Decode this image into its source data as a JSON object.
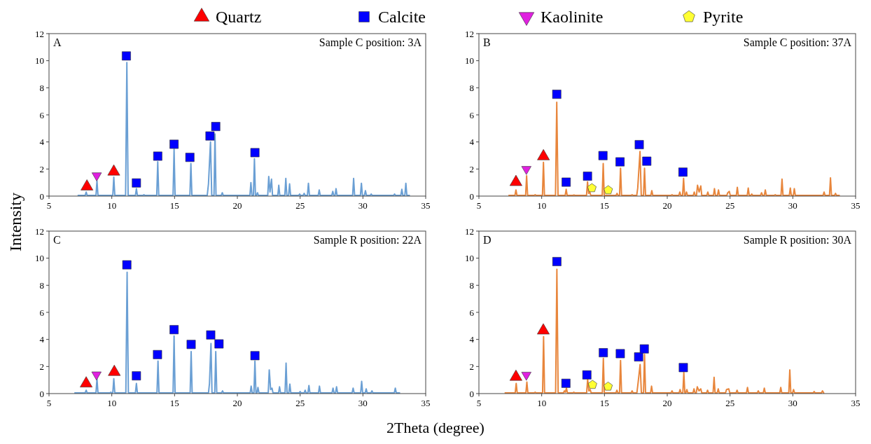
{
  "chart_data": [
    {
      "type": "line",
      "annotations": [
        "A",
        "Sample C position: 3A"
      ],
      "ylabel": "Intensity",
      "legend": "top",
      "xlim": [
        5,
        35
      ],
      "xticks": [
        5,
        10,
        15,
        20,
        25,
        30,
        35
      ],
      "ylim": [
        0,
        12
      ],
      "yticks": [
        0,
        2,
        4,
        6,
        8,
        10,
        12
      ],
      "series": [
        {
          "color": "#6a9fd4",
          "x": [
            7.32,
            7.88,
            7.96,
            8.04,
            8.74,
            8.82,
            8.9,
            10.08,
            10.16,
            10.24,
            11.1,
            11.2,
            11.3,
            11.88,
            11.96,
            12.04,
            12.48,
            12.56,
            12.64,
            13.58,
            13.66,
            13.74,
            14.88,
            14.96,
            15.04,
            16.22,
            16.3,
            16.38,
            17.6,
            17.7,
            17.86,
            17.96,
            18.14,
            18.22,
            18.3,
            18.72,
            18.8,
            18.88,
            21.0,
            21.08,
            21.16,
            21.28,
            21.36,
            21.44,
            21.52,
            21.6,
            21.68,
            22.42,
            22.5,
            22.6,
            22.72,
            22.8,
            23.22,
            23.3,
            23.38,
            23.78,
            23.86,
            23.94,
            24.08,
            24.16,
            24.24,
            24.88,
            24.96,
            25.04,
            25.24,
            25.32,
            25.4,
            25.58,
            25.66,
            25.74,
            26.44,
            26.52,
            26.6,
            27.52,
            27.6,
            27.68,
            27.78,
            27.86,
            27.94,
            29.18,
            29.26,
            29.34,
            29.8,
            29.88,
            29.96,
            30.12,
            30.2,
            30.28,
            30.58,
            30.66,
            30.74,
            32.44,
            32.52,
            32.6,
            33.02,
            33.1,
            33.18,
            33.34,
            33.42,
            33.5,
            33.7
          ],
          "values": [
            0.05,
            0.05,
            0.3,
            0.05,
            0.05,
            1.12,
            0.05,
            0.05,
            1.4,
            0.05,
            0.05,
            9.87,
            0.05,
            0.05,
            0.55,
            0.05,
            0.05,
            0.1,
            0.05,
            0.05,
            2.53,
            0.05,
            0.05,
            3.47,
            0.05,
            0.05,
            2.4,
            0.05,
            0.05,
            0.9,
            4.0,
            0.05,
            0.05,
            4.59,
            0.05,
            0.05,
            0.25,
            0.05,
            0.05,
            1.0,
            0.05,
            0.05,
            2.75,
            0.05,
            0.05,
            0.25,
            0.05,
            0.05,
            1.45,
            0.3,
            1.25,
            0.05,
            0.05,
            0.8,
            0.05,
            0.05,
            1.3,
            0.05,
            0.05,
            0.9,
            0.05,
            0.05,
            0.15,
            0.05,
            0.05,
            0.2,
            0.05,
            0.05,
            0.95,
            0.05,
            0.05,
            0.45,
            0.05,
            0.05,
            0.35,
            0.05,
            0.05,
            0.55,
            0.05,
            0.05,
            1.3,
            0.05,
            0.05,
            0.95,
            0.05,
            0.05,
            0.4,
            0.05,
            0.05,
            0.15,
            0.05,
            0.05,
            0.15,
            0.05,
            0.05,
            0.5,
            0.05,
            0.05,
            0.95,
            0.05,
            0.05
          ]
        },
        {
          "type": "scatter",
          "name": "Quartz",
          "color": "#ff0000",
          "marker": "triangle",
          "x": [
            8.02,
            10.16
          ],
          "values": [
            0.7,
            1.8
          ]
        },
        {
          "type": "scatter",
          "name": "Calcite",
          "color": "#0000ff",
          "marker": "square",
          "x": [
            11.16,
            11.96,
            13.66,
            14.96,
            16.22,
            17.82,
            18.28,
            21.4
          ],
          "values": [
            10.35,
            0.97,
            2.95,
            3.83,
            2.86,
            4.44,
            5.14,
            3.21
          ]
        },
        {
          "type": "scatter",
          "name": "Kaolinite",
          "color": "#e020e0",
          "marker": "triangle-down",
          "x": [
            8.8
          ],
          "values": [
            1.52
          ]
        }
      ]
    },
    {
      "type": "line",
      "annotations": [
        "B",
        "Sample C position: 37A"
      ],
      "xlim": [
        5,
        35
      ],
      "xticks": [
        5,
        10,
        15,
        20,
        25,
        30,
        35
      ],
      "ylim": [
        0,
        12
      ],
      "yticks": [
        0,
        2,
        4,
        6,
        8,
        10,
        12
      ],
      "series": [
        {
          "color": "#e8863c",
          "x": [
            7.39,
            7.87,
            7.95,
            8.03,
            8.72,
            8.8,
            8.88,
            9.4,
            9.48,
            9.56,
            10.06,
            10.14,
            10.22,
            11.1,
            11.2,
            11.3,
            11.87,
            11.95,
            12.03,
            12.49,
            12.57,
            12.65,
            13.57,
            13.65,
            13.74,
            13.83,
            13.91,
            14.82,
            14.9,
            14.98,
            15.92,
            16.0,
            16.08,
            16.2,
            16.28,
            16.36,
            17.12,
            17.2,
            17.28,
            17.57,
            17.65,
            17.83,
            17.93,
            18.11,
            18.19,
            18.27,
            18.69,
            18.77,
            18.85,
            20.3,
            20.38,
            20.46,
            20.92,
            21.0,
            21.08,
            21.22,
            21.3,
            21.38,
            21.45,
            21.53,
            21.61,
            22.07,
            22.15,
            22.23,
            22.33,
            22.41,
            22.54,
            22.67,
            22.75,
            23.15,
            23.23,
            23.31,
            23.68,
            23.76,
            23.84,
            24.0,
            24.08,
            24.16,
            24.74,
            24.82,
            24.94,
            25.02,
            25.5,
            25.58,
            25.66,
            26.37,
            26.45,
            26.53,
            26.65,
            26.73,
            26.81,
            27.43,
            27.51,
            27.6,
            27.73,
            27.81,
            27.89,
            28.52,
            28.6,
            28.68,
            29.06,
            29.14,
            29.22,
            29.72,
            29.8,
            29.88,
            30.04,
            30.12,
            30.2,
            32.41,
            32.49,
            32.57,
            32.92,
            33.0,
            33.08,
            33.32,
            33.4,
            33.48,
            33.7
          ],
          "values": [
            0.05,
            0.05,
            0.45,
            0.05,
            0.05,
            1.5,
            0.05,
            0.05,
            0.1,
            0.05,
            0.05,
            2.5,
            0.05,
            0.05,
            6.93,
            0.05,
            0.05,
            0.5,
            0.05,
            0.05,
            0.08,
            0.05,
            0.05,
            1.05,
            0.2,
            0.3,
            0.05,
            0.05,
            2.4,
            0.05,
            0.05,
            0.2,
            0.05,
            0.05,
            2.05,
            0.05,
            0.05,
            0.1,
            0.05,
            0.05,
            0.6,
            3.3,
            0.05,
            0.05,
            2.05,
            0.05,
            0.05,
            0.4,
            0.05,
            0.05,
            0.1,
            0.05,
            0.05,
            0.3,
            0.05,
            0.05,
            1.3,
            0.05,
            0.05,
            0.3,
            0.05,
            0.05,
            0.3,
            0.05,
            0.05,
            0.8,
            0.3,
            0.75,
            0.05,
            0.05,
            0.3,
            0.05,
            0.05,
            0.55,
            0.05,
            0.05,
            0.45,
            0.05,
            0.05,
            0.25,
            0.35,
            0.05,
            0.05,
            0.65,
            0.05,
            0.05,
            0.6,
            0.05,
            0.05,
            0.15,
            0.05,
            0.05,
            0.25,
            0.05,
            0.05,
            0.45,
            0.05,
            0.05,
            0.1,
            0.05,
            0.05,
            1.25,
            0.05,
            0.05,
            0.6,
            0.05,
            0.05,
            0.55,
            0.05,
            0.05,
            0.3,
            0.05,
            0.05,
            1.35,
            0.05,
            0.05,
            0.2,
            0.05,
            0.05
          ]
        },
        {
          "type": "scatter",
          "color": "#ff0000",
          "marker": "triangle",
          "x": [
            7.95,
            10.14
          ],
          "values": [
            1.03,
            2.93
          ]
        },
        {
          "type": "scatter",
          "color": "#0000ff",
          "marker": "square",
          "x": [
            11.2,
            11.95,
            13.65,
            14.88,
            16.24,
            17.77,
            18.37,
            21.25
          ],
          "values": [
            7.52,
            1.03,
            1.47,
            2.99,
            2.53,
            3.8,
            2.58,
            1.77
          ]
        },
        {
          "type": "scatter",
          "color": "#e020e0",
          "marker": "triangle-down",
          "x": [
            8.78
          ],
          "values": [
            1.99
          ]
        },
        {
          "type": "scatter",
          "name": "Pyrite",
          "color": "#ffff33",
          "x": [
            14.0,
            15.3
          ],
          "values": [
            0.59,
            0.44
          ]
        }
      ]
    },
    {
      "type": "line",
      "annotations": [
        "C",
        "Sample R position: 22A"
      ],
      "xlabel": "2Theta (degree)",
      "xlim": [
        5,
        35
      ],
      "xticks": [
        5,
        10,
        15,
        20,
        25,
        30,
        35
      ],
      "ylim": [
        0,
        12
      ],
      "yticks": [
        0,
        2,
        4,
        6,
        8,
        10,
        12
      ],
      "series": [
        {
          "color": "#6a9fd4",
          "x": [
            7.06,
            7.88,
            7.96,
            8.04,
            8.74,
            8.82,
            8.9,
            9.84,
            9.92,
            10.0,
            10.08,
            10.16,
            10.24,
            11.12,
            11.22,
            11.32,
            11.88,
            11.96,
            12.04,
            13.6,
            13.68,
            13.76,
            14.88,
            14.96,
            15.04,
            16.24,
            16.32,
            16.4,
            17.7,
            17.78,
            17.9,
            17.98,
            18.2,
            18.28,
            18.36,
            18.74,
            18.82,
            18.9,
            21.02,
            21.1,
            21.18,
            21.32,
            21.4,
            21.48,
            21.56,
            21.64,
            21.72,
            22.46,
            22.54,
            22.65,
            22.76,
            22.84,
            23.28,
            23.36,
            23.44,
            23.8,
            23.88,
            23.96,
            24.1,
            24.18,
            24.26,
            24.92,
            25.0,
            25.08,
            25.32,
            25.4,
            25.48,
            25.62,
            25.7,
            25.78,
            26.46,
            26.54,
            26.62,
            27.54,
            27.62,
            27.7,
            27.82,
            27.9,
            27.98,
            29.14,
            29.22,
            29.3,
            29.82,
            29.9,
            29.98,
            30.18,
            30.26,
            30.34,
            30.64,
            30.72,
            30.8,
            32.5,
            32.58,
            32.66,
            32.92
          ],
          "values": [
            0.05,
            0.05,
            0.25,
            0.05,
            0.05,
            1.1,
            0.05,
            0.05,
            0.1,
            0.05,
            0.05,
            1.1,
            0.05,
            0.05,
            8.96,
            0.05,
            0.05,
            0.75,
            0.05,
            0.05,
            2.4,
            0.05,
            0.05,
            4.25,
            0.05,
            0.05,
            3.1,
            0.05,
            0.05,
            0.75,
            3.7,
            0.05,
            0.05,
            3.1,
            0.05,
            0.05,
            0.2,
            0.05,
            0.05,
            0.55,
            0.05,
            0.05,
            2.4,
            0.05,
            0.05,
            0.45,
            0.05,
            0.05,
            1.75,
            0.3,
            0.4,
            0.05,
            0.05,
            0.5,
            0.05,
            0.05,
            2.25,
            0.05,
            0.05,
            0.7,
            0.05,
            0.05,
            0.15,
            0.05,
            0.05,
            0.25,
            0.05,
            0.05,
            0.6,
            0.05,
            0.05,
            0.55,
            0.05,
            0.05,
            0.4,
            0.05,
            0.05,
            0.5,
            0.05,
            0.05,
            0.4,
            0.05,
            0.05,
            0.9,
            0.05,
            0.05,
            0.35,
            0.05,
            0.05,
            0.2,
            0.05,
            0.05,
            0.4,
            0.05,
            0.05
          ]
        },
        {
          "type": "scatter",
          "color": "#ff0000",
          "marker": "triangle",
          "x": [
            7.96,
            10.2
          ],
          "values": [
            0.74,
            1.59
          ]
        },
        {
          "type": "scatter",
          "color": "#0000ff",
          "marker": "square",
          "x": [
            11.2,
            11.96,
            13.64,
            14.96,
            16.32,
            17.88,
            18.54,
            21.4
          ],
          "values": [
            9.51,
            1.31,
            2.88,
            4.72,
            3.63,
            4.33,
            3.67,
            2.8
          ]
        },
        {
          "type": "scatter",
          "color": "#e020e0",
          "marker": "triangle-down",
          "x": [
            8.78
          ],
          "values": [
            1.4
          ]
        }
      ]
    },
    {
      "type": "line",
      "annotations": [
        "D",
        "Sample R position: 30A"
      ],
      "xlim": [
        5,
        35
      ],
      "xticks": [
        5,
        10,
        15,
        20,
        25,
        30,
        35
      ],
      "ylim": [
        0,
        12
      ],
      "yticks": [
        0,
        2,
        4,
        6,
        8,
        10,
        12
      ],
      "series": [
        {
          "color": "#e8863c",
          "x": [
            7.09,
            7.89,
            7.97,
            8.05,
            8.74,
            8.82,
            8.9,
            9.4,
            9.48,
            9.56,
            10.07,
            10.15,
            10.23,
            11.11,
            11.21,
            11.31,
            11.73,
            11.81,
            11.89,
            11.97,
            12.05,
            12.48,
            12.56,
            12.64,
            13.58,
            13.66,
            13.76,
            13.86,
            13.94,
            14.83,
            14.91,
            14.99,
            15.91,
            15.99,
            16.07,
            16.2,
            16.28,
            16.36,
            17.12,
            17.2,
            17.28,
            17.58,
            17.66,
            17.84,
            17.94,
            18.11,
            18.19,
            18.27,
            18.67,
            18.75,
            18.83,
            20.3,
            20.38,
            20.46,
            20.94,
            21.02,
            21.1,
            21.24,
            21.32,
            21.4,
            21.48,
            21.56,
            21.64,
            22.05,
            22.13,
            22.21,
            22.31,
            22.39,
            22.53,
            22.67,
            22.75,
            23.13,
            23.21,
            23.29,
            23.65,
            23.73,
            23.81,
            23.98,
            24.06,
            24.14,
            24.64,
            24.72,
            24.9,
            24.98,
            25.48,
            25.56,
            25.64,
            26.31,
            26.39,
            26.47,
            27.17,
            27.25,
            27.33,
            27.65,
            27.73,
            27.81,
            28.96,
            29.04,
            29.12,
            29.68,
            29.76,
            29.84,
            29.98,
            30.06,
            30.14,
            31.62,
            31.7,
            31.78,
            32.28,
            32.36,
            32.46
          ],
          "values": [
            0.05,
            0.05,
            0.75,
            0.05,
            0.05,
            0.85,
            0.05,
            0.05,
            0.1,
            0.05,
            0.05,
            4.2,
            0.05,
            0.05,
            9.18,
            0.05,
            0.05,
            0.2,
            0.1,
            0.4,
            0.05,
            0.05,
            0.1,
            0.05,
            0.05,
            1.05,
            0.2,
            0.3,
            0.05,
            0.05,
            2.6,
            0.05,
            0.05,
            0.25,
            0.05,
            0.05,
            2.45,
            0.05,
            0.05,
            0.2,
            0.05,
            0.05,
            0.65,
            2.15,
            0.05,
            0.05,
            2.9,
            0.05,
            0.05,
            0.55,
            0.05,
            0.05,
            0.2,
            0.05,
            0.05,
            0.3,
            0.05,
            0.05,
            1.55,
            0.05,
            0.05,
            0.3,
            0.05,
            0.05,
            0.35,
            0.05,
            0.05,
            0.5,
            0.2,
            0.35,
            0.05,
            0.05,
            0.25,
            0.05,
            0.05,
            1.2,
            0.05,
            0.05,
            0.35,
            0.05,
            0.05,
            0.3,
            0.35,
            0.05,
            0.05,
            0.25,
            0.05,
            0.05,
            0.45,
            0.05,
            0.05,
            0.2,
            0.05,
            0.05,
            0.4,
            0.05,
            0.05,
            0.45,
            0.05,
            0.05,
            1.75,
            0.05,
            0.05,
            0.3,
            0.05,
            0.05,
            0.15,
            0.05,
            0.05,
            0.2,
            0.05
          ]
        },
        {
          "type": "scatter",
          "color": "#ff0000",
          "marker": "triangle",
          "x": [
            7.95,
            10.13
          ],
          "values": [
            1.23,
            4.65
          ]
        },
        {
          "type": "scatter",
          "color": "#0000ff",
          "marker": "square",
          "x": [
            11.21,
            11.93,
            13.6,
            14.91,
            16.26,
            17.72,
            18.17,
            21.28
          ],
          "values": [
            9.75,
            0.76,
            1.38,
            3.02,
            2.95,
            2.71,
            3.3,
            1.92
          ]
        },
        {
          "type": "scatter",
          "color": "#e020e0",
          "marker": "triangle-down",
          "x": [
            8.78
          ],
          "values": [
            1.38
          ]
        },
        {
          "type": "scatter",
          "color": "#ffff33",
          "x": [
            14.05,
            15.29
          ],
          "values": [
            0.65,
            0.52
          ]
        }
      ]
    }
  ]
}
